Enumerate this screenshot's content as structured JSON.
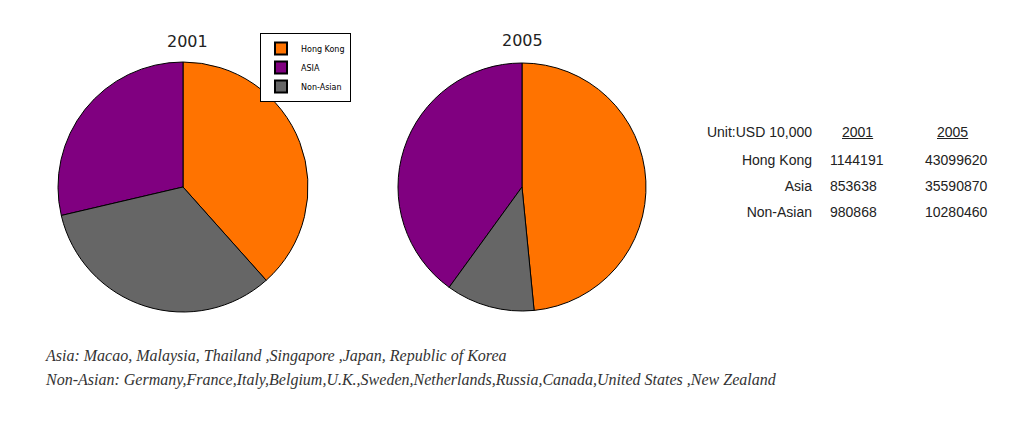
{
  "chart_data": [
    {
      "type": "pie",
      "title": "2001",
      "categories": [
        "Hong Kong",
        "ASIA",
        "Non-Asian"
      ],
      "values": [
        1144191,
        853638,
        980868
      ],
      "colors": [
        "#ff7300",
        "#800080",
        "#666666"
      ],
      "legend": "top"
    },
    {
      "type": "pie",
      "title": "2005",
      "categories": [
        "Hong Kong",
        "ASIA",
        "Non-Asian"
      ],
      "values": [
        43099620,
        35590870,
        10280460
      ],
      "colors": [
        "#ff7300",
        "#800080",
        "#666666"
      ]
    }
  ],
  "table": {
    "unit": "Unit:USD 10,000",
    "columns": [
      "2001",
      "2005"
    ],
    "rows": [
      {
        "label": "Hong Kong",
        "values": [
          1144191,
          43099620
        ]
      },
      {
        "label": "Asia",
        "values": [
          853638,
          35590870
        ]
      },
      {
        "label": "Non-Asian",
        "values": [
          980868,
          10280460
        ]
      }
    ]
  },
  "notes": [
    "Asia: Macao, Malaysia, Thailand ,Singapore ,Japan, Republic of Korea",
    "Non-Asian: Germany,France,Italy,Belgium,U.K.,Sweden,Netherlands,Russia,Canada,United States ,New Zealand"
  ]
}
